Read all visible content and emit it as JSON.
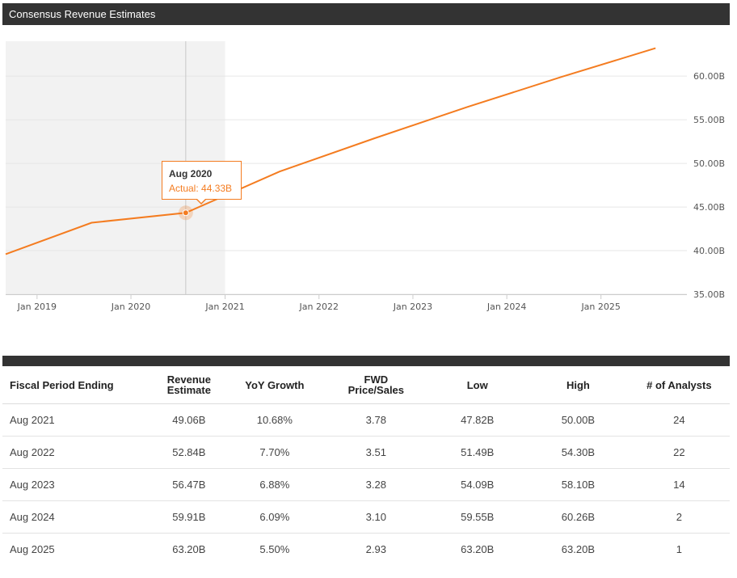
{
  "header": {
    "title": "Consensus Revenue Estimates"
  },
  "tooltip": {
    "title": "Aug 2020",
    "value": "Actual: 44.33B"
  },
  "colors": {
    "line": "#f47c20",
    "header_bg": "#333333",
    "shaded_region": "#f2f2f2"
  },
  "chart_data": {
    "type": "line",
    "title": "",
    "xlabel": "",
    "ylabel": "",
    "x_ticks": [
      "Jan 2019",
      "Jan 2020",
      "Jan 2021",
      "Jan 2022",
      "Jan 2023",
      "Jan 2024",
      "Jan 2025"
    ],
    "y_ticks": [
      "35.00B",
      "40.00B",
      "45.00B",
      "50.00B",
      "55.00B",
      "60.00B"
    ],
    "ylim": [
      35,
      64
    ],
    "x_range": [
      "2018-09-01",
      "2025-12-01"
    ],
    "actual_region_end": "2021-01-01",
    "highlight_point": {
      "x": "2020-08-01",
      "y": 44.33
    },
    "grid": true,
    "series": [
      {
        "points": [
          {
            "x": "2018-09-01",
            "y": 39.6
          },
          {
            "x": "2019-08-01",
            "y": 43.2
          },
          {
            "x": "2020-08-01",
            "y": 44.33
          },
          {
            "x": "2021-08-01",
            "y": 49.06
          },
          {
            "x": "2022-08-01",
            "y": 52.84
          },
          {
            "x": "2023-08-01",
            "y": 56.47
          },
          {
            "x": "2024-08-01",
            "y": 59.91
          },
          {
            "x": "2025-08-01",
            "y": 63.2
          }
        ]
      }
    ]
  },
  "table": {
    "columns": [
      "Fiscal Period Ending",
      "Revenue Estimate",
      "YoY Growth",
      "FWD Price/Sales",
      "Low",
      "High",
      "# of Analysts"
    ],
    "rows": [
      [
        "Aug 2021",
        "49.06B",
        "10.68%",
        "3.78",
        "47.82B",
        "50.00B",
        "24"
      ],
      [
        "Aug 2022",
        "52.84B",
        "7.70%",
        "3.51",
        "51.49B",
        "54.30B",
        "22"
      ],
      [
        "Aug 2023",
        "56.47B",
        "6.88%",
        "3.28",
        "54.09B",
        "58.10B",
        "14"
      ],
      [
        "Aug 2024",
        "59.91B",
        "6.09%",
        "3.10",
        "59.55B",
        "60.26B",
        "2"
      ],
      [
        "Aug 2025",
        "63.20B",
        "5.50%",
        "2.93",
        "63.20B",
        "63.20B",
        "1"
      ]
    ]
  }
}
